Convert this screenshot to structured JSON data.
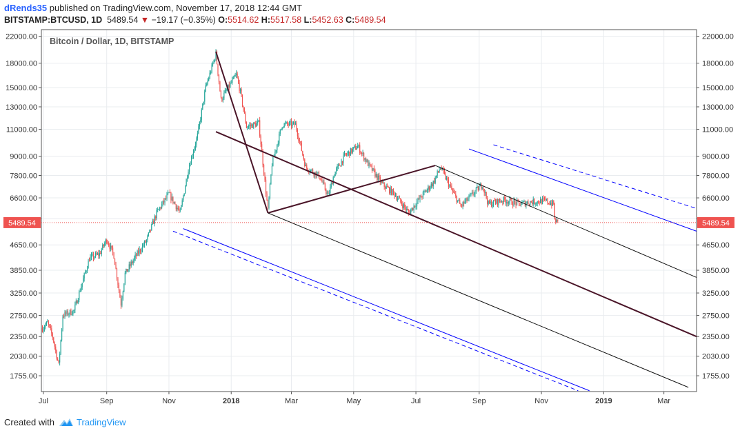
{
  "header": {
    "user": "dRends35",
    "published_text": "published on TradingView.com, November 17, 2018 12:44 GMT",
    "symbol": "BITSTAMP:BTCUSD, 1D",
    "last": "5489.54",
    "change": "−19.17 (−0.35%)",
    "open_label": "O:",
    "open": "5514.62",
    "high_label": "H:",
    "high": "5517.58",
    "low_label": "L:",
    "low": "5452.63",
    "close_label": "C:",
    "close": "5489.54"
  },
  "footer": {
    "created_with": "Created with",
    "brand": "TradingView"
  },
  "colors": {
    "up": "#26a69a",
    "down": "#ef5350",
    "grid": "#e9ecef",
    "pitchfork": "#4a1528",
    "channel": "#0000ff",
    "price_tag": "#ef5350"
  },
  "chart_data": {
    "type": "candlestick",
    "title": "Bitcoin / Dollar, 1D, BITSTAMP",
    "y_scale": "log",
    "ylim": [
      1560,
      23100
    ],
    "y_ticks": [
      22000,
      18000,
      15000,
      13000,
      11000,
      9000,
      7800,
      6600,
      5650,
      4650,
      3850,
      3250,
      2750,
      2350,
      2030,
      1755
    ],
    "y_tick_labels": [
      "22000.00",
      "18000.00",
      "15000.00",
      "13000.00",
      "11000.00",
      "9000.00",
      "7800.00",
      "6600.00",
      "",
      "4650.00",
      "3850.00",
      "3250.00",
      "2750.00",
      "2350.00",
      "2030.00",
      "1755.00"
    ],
    "x_ticks": [
      {
        "label": "Jul",
        "date": "2017-07-01",
        "bold": false
      },
      {
        "label": "Sep",
        "date": "2017-09-01",
        "bold": false
      },
      {
        "label": "Nov",
        "date": "2017-11-01",
        "bold": false
      },
      {
        "label": "2018",
        "date": "2018-01-01",
        "bold": true
      },
      {
        "label": "Mar",
        "date": "2018-03-01",
        "bold": false
      },
      {
        "label": "May",
        "date": "2018-05-01",
        "bold": false
      },
      {
        "label": "Jul",
        "date": "2018-07-01",
        "bold": false
      },
      {
        "label": "Sep",
        "date": "2018-09-01",
        "bold": false
      },
      {
        "label": "Nov",
        "date": "2018-11-01",
        "bold": false
      },
      {
        "label": "2019",
        "date": "2019-01-01",
        "bold": true
      },
      {
        "label": "Mar",
        "date": "2019-03-01",
        "bold": false
      }
    ],
    "xlim": [
      "2017-06-29",
      "2019-04-02"
    ],
    "last_price": 5489.54,
    "last_price_label": "5489.54",
    "price_path": [
      [
        "2017-06-30",
        2500
      ],
      [
        "2017-07-05",
        2600
      ],
      [
        "2017-07-10",
        2350
      ],
      [
        "2017-07-16",
        1900
      ],
      [
        "2017-07-20",
        2750
      ],
      [
        "2017-07-31",
        2850
      ],
      [
        "2017-08-05",
        3250
      ],
      [
        "2017-08-15",
        4200
      ],
      [
        "2017-08-25",
        4350
      ],
      [
        "2017-09-01",
        4850
      ],
      [
        "2017-09-08",
        4300
      ],
      [
        "2017-09-15",
        3000
      ],
      [
        "2017-09-19",
        3750
      ],
      [
        "2017-09-30",
        4300
      ],
      [
        "2017-10-10",
        4800
      ],
      [
        "2017-10-20",
        5900
      ],
      [
        "2017-11-01",
        6800
      ],
      [
        "2017-11-12",
        5900
      ],
      [
        "2017-11-20",
        8200
      ],
      [
        "2017-11-29",
        10500
      ],
      [
        "2017-12-07",
        15000
      ],
      [
        "2017-12-12",
        17000
      ],
      [
        "2017-12-17",
        19300
      ],
      [
        "2017-12-22",
        13700
      ],
      [
        "2017-12-28",
        14800
      ],
      [
        "2018-01-06",
        16500
      ],
      [
        "2018-01-10",
        14500
      ],
      [
        "2018-01-16",
        11200
      ],
      [
        "2018-01-28",
        11500
      ],
      [
        "2018-02-06",
        6000
      ],
      [
        "2018-02-10",
        8500
      ],
      [
        "2018-02-20",
        11400
      ],
      [
        "2018-03-05",
        11400
      ],
      [
        "2018-03-15",
        8300
      ],
      [
        "2018-03-28",
        7800
      ],
      [
        "2018-04-06",
        6700
      ],
      [
        "2018-04-12",
        7900
      ],
      [
        "2018-04-22",
        9000
      ],
      [
        "2018-05-05",
        9700
      ],
      [
        "2018-05-15",
        8500
      ],
      [
        "2018-05-29",
        7300
      ],
      [
        "2018-06-10",
        6800
      ],
      [
        "2018-06-24",
        5900
      ],
      [
        "2018-07-05",
        6600
      ],
      [
        "2018-07-18",
        7400
      ],
      [
        "2018-07-25",
        8300
      ],
      [
        "2018-08-05",
        7000
      ],
      [
        "2018-08-14",
        6200
      ],
      [
        "2018-08-24",
        6700
      ],
      [
        "2018-09-04",
        7300
      ],
      [
        "2018-09-10",
        6300
      ],
      [
        "2018-09-25",
        6500
      ],
      [
        "2018-10-11",
        6300
      ],
      [
        "2018-10-20",
        6400
      ],
      [
        "2018-11-05",
        6450
      ],
      [
        "2018-11-13",
        6300
      ],
      [
        "2018-11-14",
        5600
      ],
      [
        "2018-11-17",
        5489.54
      ]
    ],
    "drawings": {
      "pitchfork_points": [
        [
          "2017-12-17",
          19600
        ],
        [
          "2018-02-06",
          5900
        ],
        [
          "2018-07-20",
          8400
        ]
      ],
      "pitchfork_handle": [
        [
          "2017-12-17",
          10800
        ],
        [
          "2019-04-02",
          2350
        ]
      ],
      "channel_upper": [
        [
          "2018-08-22",
          9500
        ],
        [
          "2019-04-02",
          5150
        ]
      ],
      "channel_upper_dashed": [
        [
          "2018-09-15",
          9800
        ],
        [
          "2019-04-02",
          6100
        ]
      ],
      "channel_lower": [
        [
          "2017-11-15",
          5250
        ],
        [
          "2018-12-18",
          1570
        ]
      ],
      "channel_lower_dashed": [
        [
          "2017-11-05",
          5150
        ],
        [
          "2018-12-07",
          1570
        ]
      ],
      "fork_lower_tine": [
        [
          "2018-02-06",
          5900
        ],
        [
          "2019-03-25",
          1610
        ]
      ],
      "fork_upper_tine": [
        [
          "2018-07-20",
          8400
        ],
        [
          "2019-04-02",
          3650
        ]
      ]
    }
  }
}
